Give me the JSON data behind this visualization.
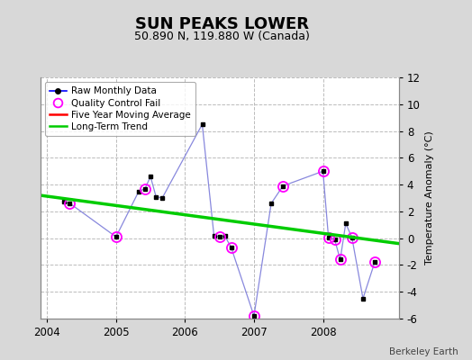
{
  "title": "SUN PEAKS LOWER",
  "subtitle": "50.890 N, 119.880 W (Canada)",
  "ylabel": "Temperature Anomaly (°C)",
  "credit": "Berkeley Earth",
  "ylim": [
    -6,
    12
  ],
  "yticks": [
    -6,
    -4,
    -2,
    0,
    2,
    4,
    6,
    8,
    10,
    12
  ],
  "xlim": [
    2003.9,
    2009.1
  ],
  "xticks": [
    2004,
    2005,
    2006,
    2007,
    2008
  ],
  "bg_color": "#d8d8d8",
  "plot_bg_color": "#ffffff",
  "grid_color": "#bbbbbb",
  "raw_data_x": [
    2004.25,
    2004.33,
    2005.0,
    2005.33,
    2005.42,
    2005.5,
    2005.58,
    2005.67,
    2006.25,
    2006.42,
    2006.5,
    2006.58,
    2006.67,
    2007.0,
    2007.25,
    2007.42,
    2008.0,
    2008.08,
    2008.17,
    2008.25,
    2008.33,
    2008.42,
    2008.58,
    2008.75
  ],
  "raw_data_y": [
    2.7,
    2.6,
    0.1,
    3.5,
    3.7,
    4.6,
    3.1,
    3.0,
    8.5,
    0.2,
    0.1,
    0.15,
    -0.7,
    -5.8,
    2.6,
    3.9,
    5.0,
    0.05,
    -0.1,
    -1.6,
    1.1,
    0.05,
    -4.5,
    -1.8
  ],
  "qc_fail_x": [
    2004.33,
    2005.0,
    2005.42,
    2006.5,
    2006.67,
    2007.0,
    2007.42,
    2008.0,
    2008.08,
    2008.17,
    2008.25,
    2008.42,
    2008.75
  ],
  "qc_fail_y": [
    2.6,
    0.1,
    3.7,
    0.1,
    -0.7,
    -5.8,
    3.9,
    5.0,
    0.05,
    -0.1,
    -1.6,
    0.05,
    -1.8
  ],
  "trend_x": [
    2003.9,
    2009.1
  ],
  "trend_y": [
    3.2,
    -0.4
  ],
  "raw_line_color": "#8888dd",
  "raw_dot_color": "#0000ff",
  "marker_color": "#000000",
  "qc_color": "#ff00ff",
  "trend_color": "#00cc00",
  "mavg_color": "#ff0000",
  "legend_bg": "#ffffff",
  "title_fontsize": 13,
  "subtitle_fontsize": 9,
  "ylabel_fontsize": 8,
  "tick_fontsize": 8.5
}
